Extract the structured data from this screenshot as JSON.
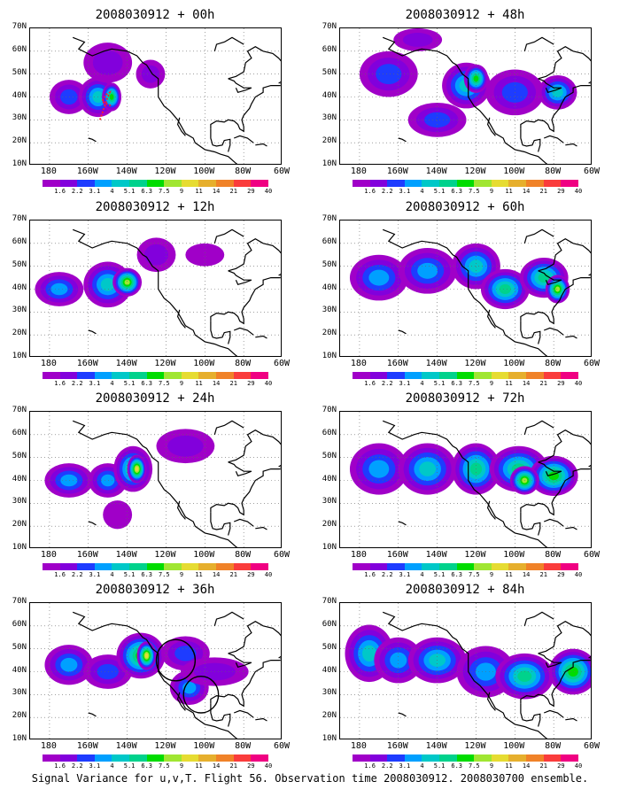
{
  "caption": "Signal Variance for u,v,T. Flight 56. Observation time 2008030912. 2008030700 ensemble.",
  "lat_labels": [
    "70N",
    "60N",
    "50N",
    "40N",
    "30N",
    "20N",
    "10N"
  ],
  "lon_labels": [
    "180",
    "160W",
    "140W",
    "120W",
    "100W",
    "80W",
    "60W"
  ],
  "colorbar": {
    "labels": [
      "1.6",
      "2.2",
      "3.1",
      "4",
      "5.1",
      "6.3",
      "7.5",
      "9",
      "11",
      "14",
      "21",
      "29",
      "40"
    ],
    "colors": [
      "#a000c8",
      "#8200dc",
      "#1e3cff",
      "#00a0ff",
      "#00c8c8",
      "#00d28c",
      "#00dc00",
      "#a0e632",
      "#e6dc32",
      "#e6af2d",
      "#f08228",
      "#fa3c3c",
      "#f00082"
    ]
  },
  "panels": [
    {
      "title": "2008030912 + 00h",
      "column": "left",
      "row": 1,
      "blobs": [
        [
          -170,
          40,
          8,
          6,
          2
        ],
        [
          -155,
          40,
          8,
          7,
          4
        ],
        [
          -148,
          40,
          4,
          5,
          6
        ],
        [
          -150,
          55,
          10,
          7,
          1
        ],
        [
          -128,
          50,
          6,
          5,
          1
        ]
      ],
      "markers": "red dotted flight track near 155W-148W, 30N-42N",
      "circles": []
    },
    {
      "title": "2008030912 + 12h",
      "column": "left",
      "row": 2,
      "blobs": [
        [
          -175,
          40,
          10,
          6,
          3
        ],
        [
          -150,
          42,
          10,
          8,
          4
        ],
        [
          -140,
          43,
          6,
          5,
          7
        ],
        [
          -125,
          55,
          8,
          6,
          1
        ],
        [
          -100,
          55,
          8,
          4,
          0
        ]
      ],
      "circles": []
    },
    {
      "title": "2008030912 + 24h",
      "column": "left",
      "row": 3,
      "blobs": [
        [
          -170,
          40,
          10,
          6,
          3
        ],
        [
          -150,
          40,
          8,
          6,
          3
        ],
        [
          -137,
          45,
          8,
          8,
          5
        ],
        [
          -135,
          45,
          4,
          5,
          8
        ],
        [
          -110,
          55,
          12,
          6,
          1
        ],
        [
          -145,
          25,
          6,
          5,
          0
        ]
      ],
      "circles": []
    },
    {
      "title": "2008030912 + 36h",
      "column": "left",
      "row": 4,
      "blobs": [
        [
          -170,
          43,
          10,
          7,
          3
        ],
        [
          -150,
          40,
          10,
          6,
          2
        ],
        [
          -133,
          47,
          10,
          8,
          6
        ],
        [
          -130,
          47,
          4,
          5,
          8
        ],
        [
          -110,
          48,
          10,
          6,
          2
        ],
        [
          -108,
          33,
          8,
          6,
          3
        ],
        [
          -95,
          40,
          14,
          5,
          1
        ]
      ],
      "circles": [
        [
          -115,
          45,
          10,
          9
        ],
        [
          -102,
          30,
          9,
          8
        ]
      ]
    },
    {
      "title": "2008030912 + 48h",
      "column": "right",
      "row": 1,
      "blobs": [
        [
          -165,
          50,
          12,
          8,
          2
        ],
        [
          -140,
          30,
          12,
          6,
          2
        ],
        [
          -125,
          45,
          10,
          8,
          4
        ],
        [
          -120,
          48,
          5,
          5,
          6
        ],
        [
          -100,
          42,
          12,
          8,
          2
        ],
        [
          -78,
          42,
          8,
          6,
          4
        ],
        [
          -150,
          65,
          10,
          4,
          1
        ]
      ],
      "circles": []
    },
    {
      "title": "2008030912 + 60h",
      "column": "right",
      "row": 2,
      "blobs": [
        [
          -170,
          45,
          12,
          8,
          3
        ],
        [
          -145,
          48,
          12,
          8,
          3
        ],
        [
          -120,
          50,
          10,
          8,
          4
        ],
        [
          -105,
          40,
          10,
          7,
          5
        ],
        [
          -85,
          45,
          10,
          7,
          5
        ],
        [
          -78,
          40,
          5,
          5,
          7
        ]
      ],
      "circles": []
    },
    {
      "title": "2008030912 + 72h",
      "column": "right",
      "row": 3,
      "blobs": [
        [
          -170,
          45,
          12,
          9,
          3
        ],
        [
          -145,
          45,
          12,
          9,
          4
        ],
        [
          -120,
          45,
          10,
          9,
          5
        ],
        [
          -98,
          45,
          12,
          8,
          5
        ],
        [
          -80,
          42,
          10,
          7,
          6
        ],
        [
          -95,
          40,
          6,
          5,
          7
        ]
      ],
      "circles": []
    },
    {
      "title": "2008030912 + 84h",
      "column": "right",
      "row": 4,
      "blobs": [
        [
          -175,
          48,
          10,
          10,
          4
        ],
        [
          -160,
          45,
          10,
          8,
          3
        ],
        [
          -140,
          45,
          12,
          8,
          4
        ],
        [
          -115,
          40,
          12,
          9,
          3
        ],
        [
          -95,
          38,
          12,
          8,
          5
        ],
        [
          -70,
          40,
          10,
          8,
          6
        ]
      ],
      "circles": []
    }
  ]
}
